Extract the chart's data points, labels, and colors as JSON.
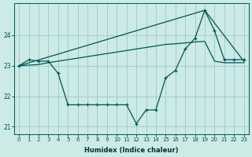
{
  "xlabel": "Humidex (Indice chaleur)",
  "background_color": "#cceae6",
  "line_color": "#005555",
  "grid_color": "#99cccc",
  "ylim": [
    20.75,
    25.05
  ],
  "xlim": [
    -0.5,
    23.5
  ],
  "yticks": [
    21,
    22,
    23,
    24
  ],
  "xticks": [
    0,
    1,
    2,
    3,
    4,
    5,
    6,
    7,
    8,
    9,
    10,
    11,
    12,
    13,
    14,
    15,
    16,
    17,
    18,
    19,
    20,
    21,
    22,
    23
  ],
  "line1_x": [
    0,
    1,
    2,
    3,
    4,
    5,
    6,
    7,
    8,
    9,
    10,
    11,
    12,
    13,
    14,
    15,
    16,
    17,
    18,
    19,
    20,
    21,
    22,
    23
  ],
  "line1_y": [
    23.0,
    23.2,
    23.15,
    23.15,
    22.75,
    21.72,
    21.72,
    21.72,
    21.72,
    21.72,
    21.72,
    21.72,
    21.1,
    21.55,
    21.55,
    22.6,
    22.85,
    23.55,
    23.9,
    24.82,
    24.15,
    23.2,
    23.2,
    23.2
  ],
  "line2_x": [
    0,
    1,
    2,
    3,
    4,
    5,
    6,
    7,
    8,
    9,
    10,
    11,
    12,
    13,
    14,
    15,
    16,
    17,
    18,
    19,
    20,
    21,
    22,
    23
  ],
  "line2_y": [
    23.0,
    23.02,
    23.04,
    23.1,
    23.15,
    23.2,
    23.25,
    23.3,
    23.35,
    23.4,
    23.45,
    23.5,
    23.55,
    23.6,
    23.65,
    23.7,
    23.72,
    23.75,
    23.78,
    23.8,
    23.15,
    23.1,
    23.1,
    23.1
  ],
  "line3_x": [
    0,
    19,
    23
  ],
  "line3_y": [
    23.0,
    24.82,
    23.15
  ]
}
